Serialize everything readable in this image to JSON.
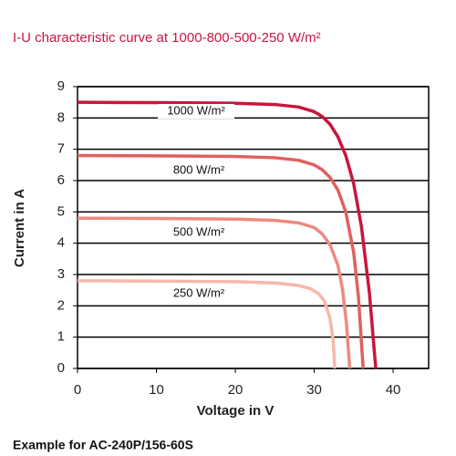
{
  "chart_data": {
    "type": "line",
    "title": "I-U characteristic curve at 1000-800-500-250 W/m²",
    "xlabel": "Voltage in V",
    "ylabel": "Current in A",
    "footer": "Example for AC-240P/156-60S",
    "xlim": [
      0,
      44.5
    ],
    "ylim": [
      0,
      9
    ],
    "xticks": [
      0,
      10,
      20,
      30,
      40
    ],
    "yticks": [
      0,
      1,
      2,
      3,
      4,
      5,
      6,
      7,
      8,
      9
    ],
    "grid": true,
    "series": [
      {
        "name": "1000 W/m²",
        "color": "#c8163e",
        "x": [
          0,
          10,
          20,
          25,
          28,
          30,
          31,
          32,
          33,
          34,
          35,
          36,
          37,
          37.8
        ],
        "values": [
          8.5,
          8.49,
          8.47,
          8.43,
          8.35,
          8.2,
          8.05,
          7.8,
          7.4,
          6.8,
          5.9,
          4.5,
          2.4,
          0
        ]
      },
      {
        "name": "800 W/m²",
        "color": "#e0605c",
        "x": [
          0,
          10,
          20,
          25,
          28,
          30,
          31,
          32,
          33,
          34,
          35,
          35.6,
          36.2
        ],
        "values": [
          6.8,
          6.79,
          6.77,
          6.73,
          6.65,
          6.5,
          6.35,
          6.1,
          5.7,
          5.0,
          3.7,
          2.3,
          0
        ]
      },
      {
        "name": "500 W/m²",
        "color": "#ec8a80",
        "x": [
          0,
          10,
          20,
          25,
          28,
          30,
          31,
          32,
          33,
          33.6,
          34.1,
          34.5
        ],
        "values": [
          4.8,
          4.79,
          4.77,
          4.73,
          4.65,
          4.5,
          4.3,
          3.95,
          3.3,
          2.5,
          1.4,
          0
        ]
      },
      {
        "name": "250 W/m²",
        "color": "#f5b8ab",
        "x": [
          0,
          10,
          20,
          25,
          28,
          29.5,
          30.5,
          31.3,
          32,
          32.4,
          32.6
        ],
        "values": [
          2.8,
          2.79,
          2.77,
          2.73,
          2.65,
          2.55,
          2.4,
          2.15,
          1.6,
          0.9,
          0
        ]
      }
    ]
  }
}
